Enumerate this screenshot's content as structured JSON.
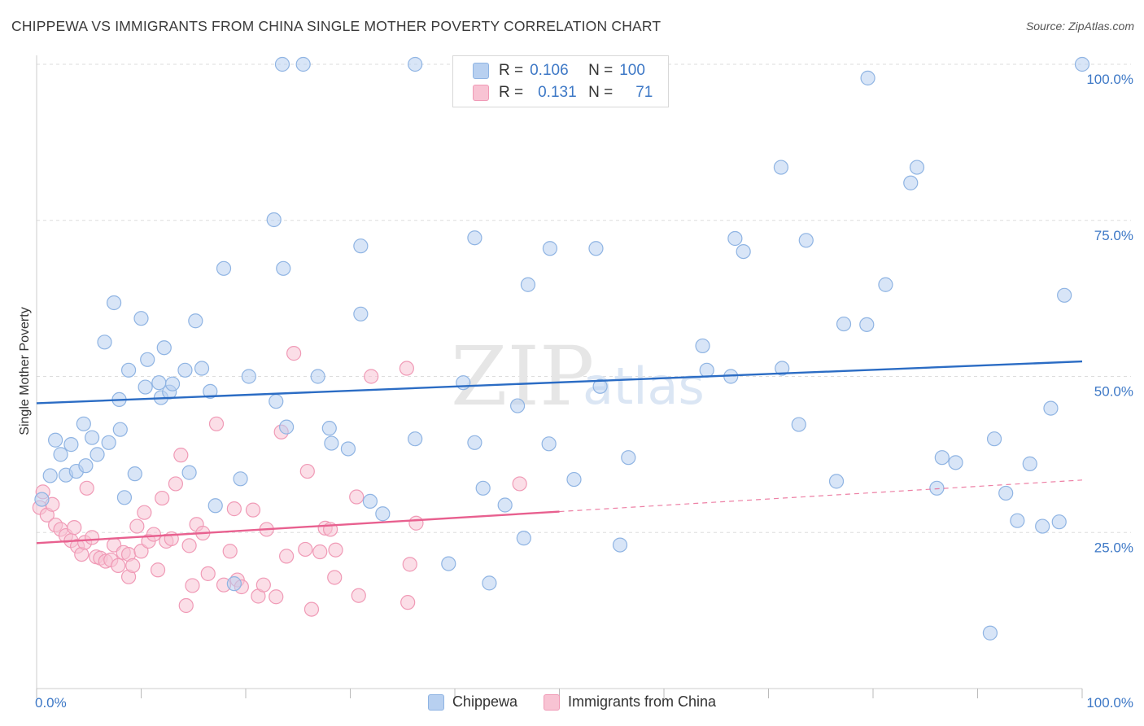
{
  "title": "CHIPPEWA VS IMMIGRANTS FROM CHINA SINGLE MOTHER POVERTY CORRELATION CHART",
  "source": "Source: ZipAtlas.com",
  "watermark": {
    "zip": "ZIP",
    "atlas": "atlas"
  },
  "legend": {
    "row1": {
      "r_label": "R =",
      "r_value": "0.106",
      "n_label": "N =",
      "n_value": "100"
    },
    "row2": {
      "r_label": "R =",
      "r_value": "0.131",
      "n_label": "N =",
      "n_value": "71"
    }
  },
  "colors": {
    "blue_fill": "#b8d0f0",
    "blue_stroke": "#8fb4e3",
    "blue_line": "#2b6cc4",
    "pink_fill": "#f8c3d3",
    "pink_stroke": "#f09ab6",
    "pink_line": "#e8608f",
    "axis_text": "#3d78c6",
    "grid": "#dddddd"
  },
  "chart_data": {
    "type": "scatter",
    "title": "CHIPPEWA VS IMMIGRANTS FROM CHINA SINGLE MOTHER POVERTY CORRELATION CHART",
    "xlabel": "",
    "ylabel": "Single Mother Poverty",
    "xlim": [
      0,
      100
    ],
    "ylim": [
      0,
      100
    ],
    "x_tick_labels": [
      "0.0%",
      "100.0%"
    ],
    "y_tick_labels": [
      {
        "value": 25,
        "label": "25.0%"
      },
      {
        "value": 50,
        "label": "50.0%"
      },
      {
        "value": 75,
        "label": "75.0%"
      },
      {
        "value": 100,
        "label": "100.0%"
      }
    ],
    "grid": true,
    "legend_position": "bottom",
    "series": [
      {
        "name": "Chippewa",
        "color": "#8fb4e3",
        "trend": {
          "x": [
            0,
            100
          ],
          "y": [
            45.7,
            52.4
          ],
          "dashed_from": null
        },
        "points": [
          [
            0.5,
            30.3
          ],
          [
            1.3,
            34.1
          ],
          [
            1.8,
            39.8
          ],
          [
            2.3,
            37.5
          ],
          [
            2.8,
            34.2
          ],
          [
            3.3,
            39.1
          ],
          [
            3.8,
            34.8
          ],
          [
            4.5,
            42.4
          ],
          [
            4.7,
            35.7
          ],
          [
            5.3,
            40.2
          ],
          [
            5.8,
            37.5
          ],
          [
            6.5,
            55.5
          ],
          [
            6.9,
            39.4
          ],
          [
            7.4,
            61.8
          ],
          [
            7.9,
            46.3
          ],
          [
            8.4,
            30.6
          ],
          [
            8.8,
            51.0
          ],
          [
            9.4,
            34.4
          ],
          [
            10.0,
            59.3
          ],
          [
            10.4,
            48.3
          ],
          [
            10.6,
            52.7
          ],
          [
            11.7,
            49.0
          ],
          [
            11.9,
            46.6
          ],
          [
            12.2,
            54.6
          ],
          [
            12.7,
            47.5
          ],
          [
            14.2,
            51.0
          ],
          [
            14.6,
            34.6
          ],
          [
            15.2,
            58.9
          ],
          [
            15.8,
            51.3
          ],
          [
            16.6,
            47.6
          ],
          [
            17.1,
            29.3
          ],
          [
            17.9,
            67.3
          ],
          [
            18.9,
            16.8
          ],
          [
            19.5,
            33.6
          ],
          [
            20.3,
            50.0
          ],
          [
            22.7,
            75.1
          ],
          [
            22.9,
            46.0
          ],
          [
            23.6,
            67.3
          ],
          [
            23.9,
            41.9
          ],
          [
            23.5,
            100
          ],
          [
            25.5,
            100
          ],
          [
            26.9,
            50.0
          ],
          [
            28.0,
            41.7
          ],
          [
            28.2,
            39.3
          ],
          [
            29.8,
            38.4
          ],
          [
            31.0,
            70.9
          ],
          [
            31.0,
            60.0
          ],
          [
            31.9,
            30.0
          ],
          [
            33.1,
            28.0
          ],
          [
            36.2,
            40.0
          ],
          [
            36.2,
            100
          ],
          [
            39.4,
            20.0
          ],
          [
            40.8,
            49.0
          ],
          [
            41.9,
            39.4
          ],
          [
            41.9,
            72.2
          ],
          [
            42.7,
            32.1
          ],
          [
            43.3,
            16.9
          ],
          [
            44.8,
            29.4
          ],
          [
            46.0,
            45.3
          ],
          [
            46.6,
            24.1
          ],
          [
            47.0,
            64.7
          ],
          [
            49.0,
            39.2
          ],
          [
            49.1,
            70.5
          ],
          [
            51.4,
            33.5
          ],
          [
            53.5,
            70.5
          ],
          [
            53.9,
            48.4
          ],
          [
            55.8,
            23.0
          ],
          [
            56.6,
            37.0
          ],
          [
            63.7,
            54.9
          ],
          [
            64.1,
            51.0
          ],
          [
            66.4,
            50.0
          ],
          [
            66.8,
            72.1
          ],
          [
            67.6,
            70.0
          ],
          [
            71.2,
            83.5
          ],
          [
            71.3,
            51.3
          ],
          [
            72.9,
            42.3
          ],
          [
            73.6,
            71.8
          ],
          [
            76.5,
            33.2
          ],
          [
            77.2,
            58.4
          ],
          [
            79.4,
            58.3
          ],
          [
            79.5,
            97.8
          ],
          [
            81.2,
            64.7
          ],
          [
            83.6,
            81.0
          ],
          [
            84.2,
            83.5
          ],
          [
            86.1,
            32.1
          ],
          [
            86.6,
            37.0
          ],
          [
            87.9,
            36.2
          ],
          [
            91.2,
            8.9
          ],
          [
            91.6,
            40.0
          ],
          [
            92.7,
            31.3
          ],
          [
            93.8,
            26.9
          ],
          [
            95.0,
            36.0
          ],
          [
            96.2,
            26.0
          ],
          [
            97.0,
            44.9
          ],
          [
            97.8,
            26.7
          ],
          [
            98.3,
            63.0
          ],
          [
            100,
            100
          ],
          [
            13.0,
            48.8
          ],
          [
            45.6,
            100
          ],
          [
            8.0,
            41.5
          ]
        ]
      },
      {
        "name": "Immigrants from China",
        "color": "#f09ab6",
        "trend": {
          "x": [
            0,
            100
          ],
          "y": [
            23.3,
            33.4
          ],
          "dashed_from": 50
        },
        "points": [
          [
            0.3,
            29.0
          ],
          [
            0.6,
            31.5
          ],
          [
            1.0,
            27.8
          ],
          [
            1.5,
            29.5
          ],
          [
            1.8,
            26.2
          ],
          [
            2.3,
            25.5
          ],
          [
            2.8,
            24.5
          ],
          [
            3.3,
            23.7
          ],
          [
            3.6,
            25.8
          ],
          [
            3.9,
            22.8
          ],
          [
            4.3,
            21.5
          ],
          [
            4.6,
            23.4
          ],
          [
            4.8,
            32.1
          ],
          [
            5.3,
            24.2
          ],
          [
            5.7,
            21.1
          ],
          [
            6.1,
            20.9
          ],
          [
            6.6,
            20.4
          ],
          [
            7.1,
            20.6
          ],
          [
            7.4,
            23.0
          ],
          [
            7.8,
            19.7
          ],
          [
            8.3,
            21.8
          ],
          [
            8.8,
            21.5
          ],
          [
            8.8,
            17.9
          ],
          [
            9.2,
            19.7
          ],
          [
            9.6,
            26.0
          ],
          [
            10.0,
            22.0
          ],
          [
            10.3,
            28.2
          ],
          [
            10.7,
            23.6
          ],
          [
            11.2,
            24.7
          ],
          [
            11.6,
            19.0
          ],
          [
            12.0,
            30.5
          ],
          [
            12.4,
            23.6
          ],
          [
            12.9,
            24.0
          ],
          [
            13.3,
            32.8
          ],
          [
            13.8,
            37.4
          ],
          [
            14.3,
            13.3
          ],
          [
            14.6,
            22.9
          ],
          [
            14.9,
            16.5
          ],
          [
            15.3,
            26.3
          ],
          [
            15.9,
            24.9
          ],
          [
            16.4,
            18.4
          ],
          [
            17.2,
            42.4
          ],
          [
            17.9,
            16.6
          ],
          [
            18.5,
            22.0
          ],
          [
            18.9,
            28.8
          ],
          [
            19.2,
            17.4
          ],
          [
            19.6,
            16.3
          ],
          [
            20.7,
            28.6
          ],
          [
            21.2,
            14.8
          ],
          [
            21.7,
            16.6
          ],
          [
            22.0,
            25.5
          ],
          [
            22.9,
            14.7
          ],
          [
            23.4,
            41.1
          ],
          [
            23.9,
            21.2
          ],
          [
            24.6,
            53.7
          ],
          [
            25.7,
            22.3
          ],
          [
            25.9,
            34.8
          ],
          [
            26.3,
            12.7
          ],
          [
            27.1,
            21.9
          ],
          [
            27.6,
            25.7
          ],
          [
            28.1,
            25.5
          ],
          [
            28.5,
            17.8
          ],
          [
            28.6,
            22.2
          ],
          [
            30.6,
            30.7
          ],
          [
            30.8,
            14.9
          ],
          [
            32.0,
            50.0
          ],
          [
            35.4,
            51.3
          ],
          [
            35.7,
            19.9
          ],
          [
            36.3,
            26.5
          ],
          [
            46.2,
            32.8
          ],
          [
            35.5,
            13.8
          ]
        ]
      }
    ]
  },
  "bottom_legend": {
    "item1": "Chippewa",
    "item2": "Immigrants from China"
  }
}
